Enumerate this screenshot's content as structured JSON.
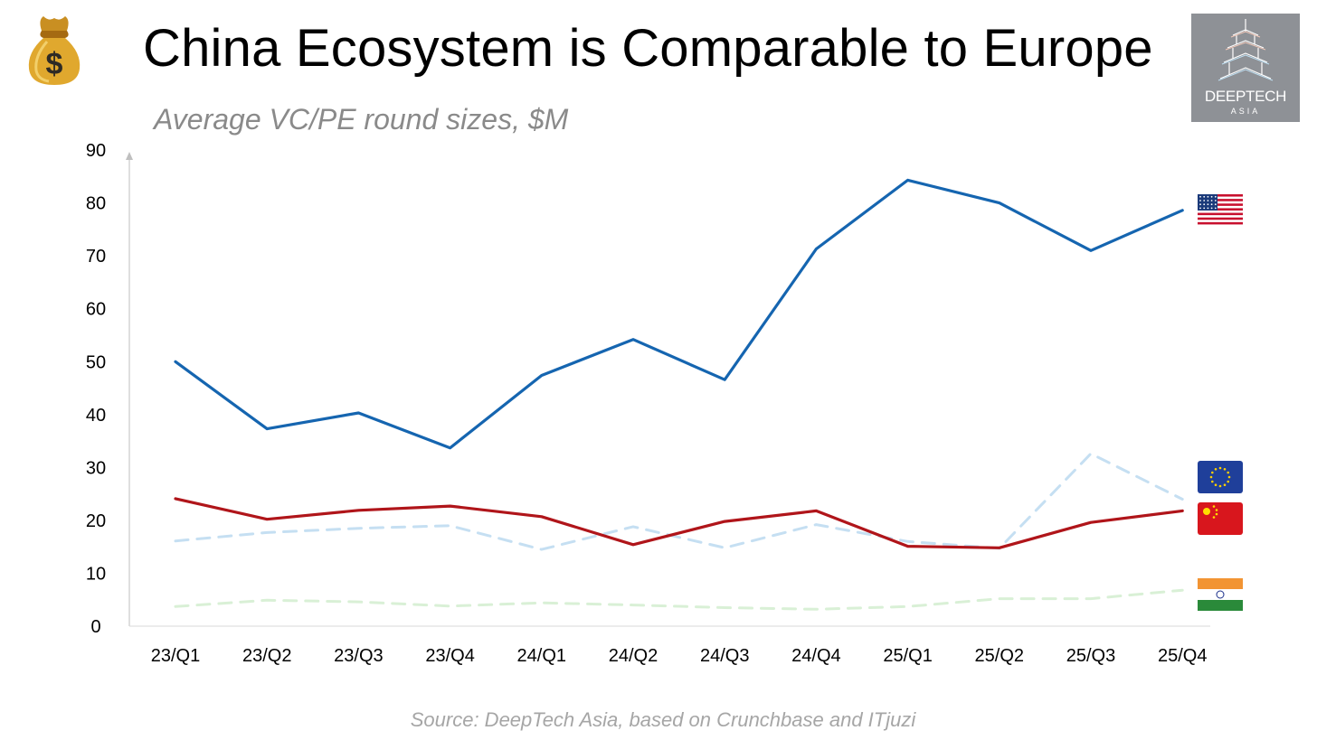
{
  "title": "China Ecosystem is Comparable to Europe",
  "subtitle": "Average VC/PE round sizes, $M",
  "source": "Source: DeepTech Asia, based on Crunchbase and ITjuzi",
  "logo": {
    "name": "DEEPTECH",
    "sub": "ASIA"
  },
  "icons": {
    "title_icon": "money-bag-icon",
    "logo_icon": "pagoda-icon"
  },
  "flags": [
    "us-flag-icon",
    "eu-flag-icon",
    "china-flag-icon",
    "india-flag-icon"
  ],
  "chart_data": {
    "type": "line",
    "categories": [
      "23/Q1",
      "23/Q2",
      "23/Q3",
      "23/Q4",
      "24/Q1",
      "24/Q2",
      "24/Q3",
      "24/Q4",
      "25/Q1",
      "25/Q2",
      "25/Q3",
      "25/Q4"
    ],
    "yticks": [
      0,
      10,
      20,
      30,
      40,
      50,
      60,
      70,
      80,
      90
    ],
    "ylim": [
      0,
      90
    ],
    "grid": false,
    "title": "",
    "xlabel": "",
    "ylabel": "",
    "series": [
      {
        "key": "us",
        "color": "#1565b0",
        "dash": false,
        "values": [
          50,
          37.3,
          40.3,
          33.7,
          47.4,
          54.2,
          46.6,
          71.3,
          84.3,
          80.0,
          71.0,
          78.6
        ]
      },
      {
        "key": "eu",
        "color": "#c5dff2",
        "dash": true,
        "values": [
          16.1,
          17.7,
          18.5,
          19.0,
          14.5,
          18.8,
          14.8,
          19.2,
          16.0,
          14.7,
          32.6,
          24.0
        ]
      },
      {
        "key": "china",
        "color": "#b0151a",
        "dash": false,
        "values": [
          24.1,
          20.2,
          21.9,
          22.7,
          20.7,
          15.4,
          19.8,
          21.8,
          15.1,
          14.8,
          19.6,
          21.8
        ]
      },
      {
        "key": "india",
        "color": "#d9f0d6",
        "dash": true,
        "values": [
          3.7,
          4.9,
          4.6,
          3.8,
          4.4,
          4.0,
          3.5,
          3.2,
          3.7,
          5.2,
          5.2,
          6.8
        ]
      }
    ]
  }
}
